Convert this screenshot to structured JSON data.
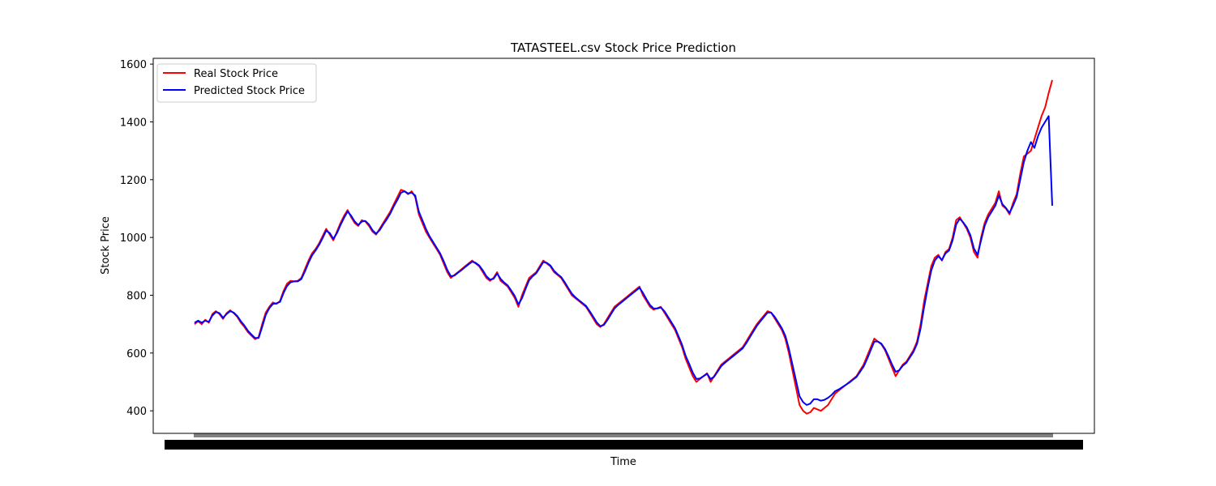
{
  "chart_data": {
    "type": "line",
    "title": "TATASTEEL.csv Stock Price Prediction",
    "xlabel": "Time",
    "ylabel": "Stock Price",
    "ylim": [
      322,
      1620
    ],
    "yticks": [
      400,
      600,
      800,
      1000,
      1200,
      1400,
      1600
    ],
    "x_tick_labels_note": "overlapping, illegible date labels",
    "grid": false,
    "legend_position": "upper-left",
    "series": [
      {
        "name": "Real Stock Price",
        "color": "#ff0000",
        "values": [
          700,
          710,
          700,
          715,
          705,
          735,
          745,
          735,
          718,
          738,
          748,
          738,
          725,
          705,
          690,
          672,
          660,
          648,
          655,
          700,
          740,
          760,
          775,
          770,
          780,
          815,
          840,
          850,
          848,
          850,
          860,
          890,
          920,
          945,
          960,
          980,
          1005,
          1030,
          1010,
          990,
          1020,
          1050,
          1075,
          1095,
          1070,
          1050,
          1040,
          1060,
          1055,
          1040,
          1020,
          1010,
          1030,
          1050,
          1070,
          1090,
          1115,
          1140,
          1165,
          1160,
          1150,
          1160,
          1140,
          1080,
          1050,
          1020,
          1000,
          980,
          960,
          940,
          910,
          880,
          860,
          870,
          880,
          890,
          900,
          910,
          920,
          910,
          900,
          880,
          860,
          850,
          860,
          880,
          850,
          840,
          830,
          810,
          790,
          760,
          800,
          830,
          860,
          870,
          880,
          900,
          920,
          910,
          900,
          880,
          870,
          860,
          840,
          820,
          800,
          790,
          780,
          770,
          760,
          740,
          720,
          700,
          690,
          700,
          720,
          740,
          760,
          770,
          780,
          790,
          800,
          810,
          820,
          830,
          800,
          780,
          760,
          750,
          755,
          760,
          740,
          720,
          700,
          680,
          650,
          620,
          580,
          550,
          520,
          500,
          510,
          520,
          530,
          500,
          520,
          540,
          560,
          570,
          580,
          590,
          600,
          610,
          620,
          640,
          660,
          680,
          700,
          715,
          730,
          745,
          740,
          720,
          700,
          680,
          650,
          600,
          540,
          480,
          420,
          400,
          390,
          395,
          410,
          405,
          400,
          410,
          420,
          440,
          460,
          470,
          480,
          490,
          500,
          510,
          520,
          540,
          560,
          590,
          620,
          650,
          640,
          630,
          610,
          580,
          550,
          520,
          540,
          560,
          570,
          590,
          610,
          640,
          700,
          780,
          840,
          900,
          930,
          940,
          920,
          950,
          960,
          1000,
          1060,
          1070,
          1050,
          1030,
          1000,
          950,
          930,
          1000,
          1050,
          1080,
          1100,
          1120,
          1160,
          1110,
          1100,
          1080,
          1120,
          1150,
          1220,
          1280,
          1290,
          1300,
          1340,
          1380,
          1420,
          1450,
          1500,
          1545
        ]
      },
      {
        "name": "Predicted Stock Price",
        "color": "#0000ff",
        "values": [
          705,
          712,
          705,
          712,
          708,
          730,
          742,
          738,
          722,
          735,
          745,
          740,
          728,
          710,
          695,
          677,
          664,
          652,
          652,
          690,
          732,
          755,
          770,
          772,
          777,
          808,
          832,
          845,
          848,
          848,
          856,
          882,
          912,
          938,
          955,
          975,
          998,
          1024,
          1015,
          995,
          1015,
          1043,
          1068,
          1090,
          1075,
          1055,
          1043,
          1055,
          1057,
          1045,
          1025,
          1013,
          1025,
          1045,
          1063,
          1083,
          1108,
          1130,
          1155,
          1160,
          1152,
          1155,
          1145,
          1090,
          1060,
          1030,
          1005,
          985,
          965,
          945,
          918,
          888,
          866,
          868,
          878,
          887,
          897,
          907,
          916,
          912,
          903,
          886,
          866,
          854,
          857,
          875,
          857,
          844,
          834,
          816,
          797,
          768,
          790,
          822,
          852,
          866,
          876,
          895,
          915,
          912,
          903,
          885,
          873,
          863,
          845,
          825,
          806,
          793,
          783,
          773,
          763,
          745,
          726,
          706,
          693,
          697,
          714,
          734,
          754,
          766,
          776,
          786,
          796,
          806,
          816,
          826,
          808,
          786,
          766,
          754,
          754,
          758,
          745,
          726,
          706,
          686,
          658,
          628,
          590,
          562,
          532,
          510,
          512,
          520,
          528,
          510,
          518,
          536,
          555,
          566,
          576,
          586,
          596,
          606,
          616,
          634,
          654,
          674,
          694,
          710,
          725,
          740,
          740,
          725,
          706,
          686,
          660,
          615,
          560,
          505,
          450,
          430,
          420,
          425,
          440,
          440,
          435,
          438,
          445,
          455,
          468,
          474,
          482,
          490,
          498,
          508,
          517,
          535,
          553,
          580,
          610,
          640,
          640,
          632,
          614,
          588,
          560,
          535,
          540,
          556,
          566,
          585,
          604,
          632,
          685,
          760,
          825,
          885,
          920,
          935,
          922,
          945,
          955,
          990,
          1045,
          1065,
          1052,
          1035,
          1008,
          962,
          940,
          990,
          1040,
          1070,
          1090,
          1110,
          1145,
          1115,
          1102,
          1085,
          1110,
          1140,
          1200,
          1260,
          1300,
          1330,
          1310,
          1350,
          1380,
          1400,
          1420,
          1110
        ]
      }
    ]
  }
}
